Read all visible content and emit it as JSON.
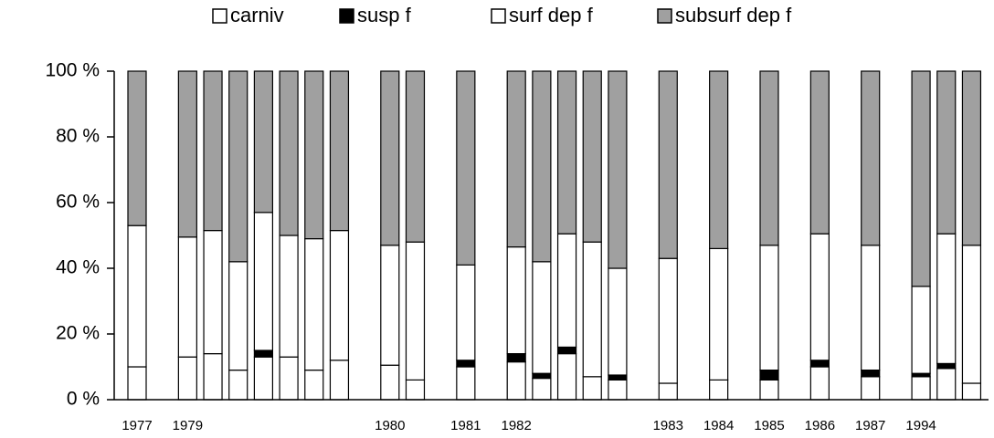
{
  "chart_data": {
    "type": "stacked_bar",
    "categories": [
      "1977",
      null,
      "1979",
      null,
      null,
      null,
      null,
      null,
      null,
      null,
      "1980",
      null,
      null,
      "1981",
      null,
      "1982",
      null,
      null,
      null,
      null,
      null,
      "1983",
      null,
      "1984",
      null,
      "1985",
      null,
      "1986",
      null,
      "1987",
      null,
      "1994",
      null,
      null
    ],
    "series": [
      {
        "name": "carniv",
        "color": "#ffffff",
        "values": [
          10,
          null,
          13,
          14,
          9,
          13,
          13,
          9,
          12,
          null,
          10.5,
          6,
          null,
          10,
          null,
          11.5,
          6.5,
          14,
          7,
          6,
          null,
          5,
          null,
          6,
          null,
          6,
          null,
          10,
          null,
          7,
          null,
          7,
          9.5,
          5
        ]
      },
      {
        "name": "susp f",
        "color": "#000000",
        "values": [
          0,
          null,
          0,
          0,
          0,
          2,
          0,
          0,
          0,
          null,
          0,
          0,
          null,
          2,
          null,
          2.5,
          1.5,
          2,
          0,
          1.5,
          null,
          0,
          null,
          0,
          null,
          3,
          null,
          2,
          null,
          2,
          null,
          1,
          1.5,
          0
        ]
      },
      {
        "name": "surf dep f",
        "color": "#ffffff",
        "values": [
          43,
          null,
          36.5,
          37.5,
          33,
          42,
          37,
          40,
          39.5,
          null,
          36.5,
          42,
          null,
          29,
          null,
          32.5,
          34,
          34.5,
          41,
          32.5,
          null,
          38,
          null,
          40,
          null,
          38,
          null,
          38.5,
          null,
          38,
          null,
          26.5,
          39.5,
          42
        ]
      },
      {
        "name": "subsurf dep f",
        "color": "#a0a0a0",
        "values": [
          47,
          null,
          50.5,
          48.5,
          58,
          43,
          50,
          51,
          48.5,
          null,
          53,
          52,
          null,
          59,
          null,
          53.5,
          58,
          49.5,
          52,
          60,
          null,
          57,
          null,
          54,
          null,
          53,
          null,
          49.5,
          null,
          53,
          null,
          65.5,
          49.5,
          53
        ]
      }
    ],
    "ylim": [
      0,
      100
    ],
    "yticks": [
      {
        "value": 0,
        "label": "0 %"
      },
      {
        "value": 20,
        "label": "20 %"
      },
      {
        "value": 40,
        "label": "40 %"
      },
      {
        "value": 60,
        "label": "60 %"
      },
      {
        "value": 80,
        "label": "80 %"
      },
      {
        "value": 100,
        "label": "100 %"
      }
    ],
    "legend": "top"
  }
}
